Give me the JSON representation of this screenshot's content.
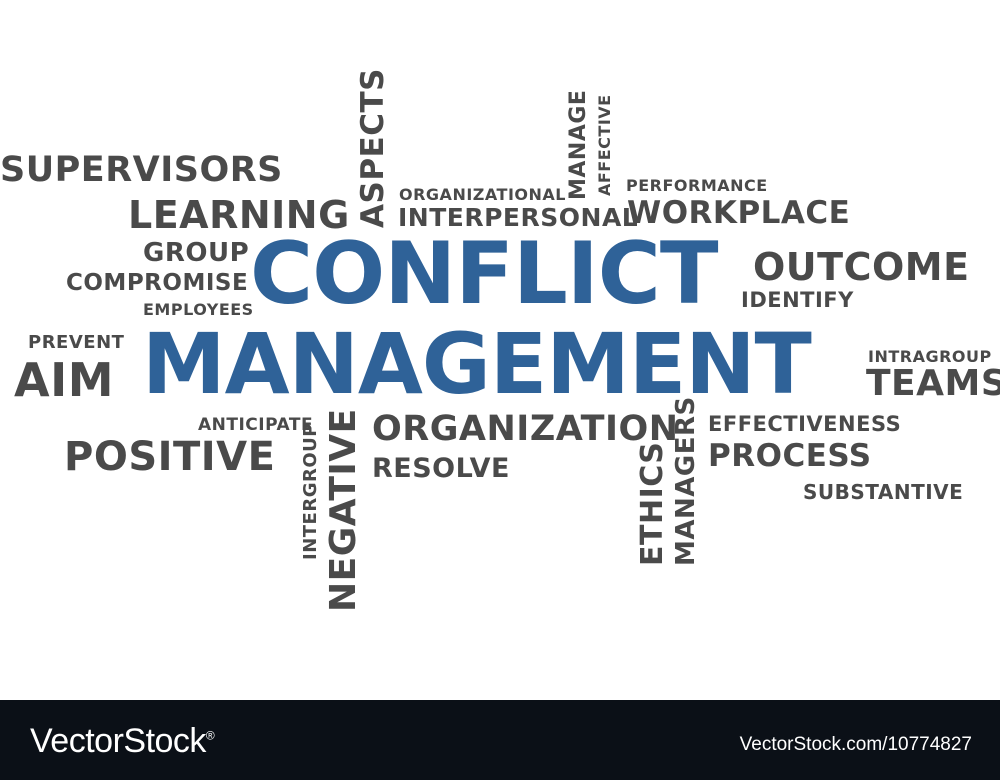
{
  "words": {
    "supervisors": "SUPERVISORS",
    "learning": "LEARNING",
    "group": "GROUP",
    "compromise": "COMPROMISE",
    "employees": "EMPLOYEES",
    "prevent": "PREVENT",
    "aim": "AIM",
    "positive": "POSITIVE",
    "anticipate": "ANTICIPATE",
    "intergroup": "INTERGROUP",
    "negative": "NEGATIVE",
    "aspects": "ASPECTS",
    "organizational": "ORGANIZATIONAL",
    "interpersonal": "INTERPERSONAL",
    "manage": "MANAGE",
    "affective": "AFFECTIVE",
    "performance": "PERFORMANCE",
    "workplace": "WORKPLACE",
    "outcome": "OUTCOME",
    "identify": "IDENTIFY",
    "intragroup": "INTRAGROUP",
    "teams": "TEAMS",
    "effectiveness": "EFFECTIVENESS",
    "process": "PROCESS",
    "substantive": "SUBSTANTIVE",
    "organization": "ORGANIZATION",
    "resolve": "RESOLVE",
    "ethics": "ETHICS",
    "managers": "MANAGERS",
    "conflict": "CONFLICT",
    "management": "MANAGEMENT"
  },
  "footer": {
    "brand": "VectorStock",
    "brand_mark": "®",
    "image_id": "VectorStock.com/10774827"
  },
  "colors": {
    "main_words": "#2f6298",
    "secondary_words": "#4a4a4a",
    "footer_bg": "#0b1017"
  }
}
